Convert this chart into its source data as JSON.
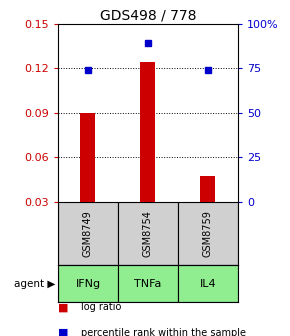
{
  "title": "GDS498 / 778",
  "samples": [
    "GSM8749",
    "GSM8754",
    "GSM8759"
  ],
  "agents": [
    "IFNg",
    "TNFa",
    "IL4"
  ],
  "log_ratio": [
    0.09,
    0.124,
    0.047
  ],
  "percentile_rank": [
    0.119,
    0.137,
    0.119
  ],
  "ylim_left": [
    0.03,
    0.15
  ],
  "yticks_left": [
    0.03,
    0.06,
    0.09,
    0.12,
    0.15
  ],
  "ylim_right": [
    0,
    100
  ],
  "yticks_right": [
    0,
    25,
    50,
    75,
    100
  ],
  "ytick_labels_right": [
    "0",
    "25",
    "50",
    "75",
    "100%"
  ],
  "bar_color": "#cc0000",
  "point_color": "#0000cc",
  "left_tick_color": "#cc0000",
  "right_tick_color": "#0000cc",
  "gray_box_color": "#d0d0d0",
  "green_box_color": "#90ee90",
  "bar_width": 0.25,
  "x_positions": [
    0,
    1,
    2
  ],
  "xlim": [
    -0.5,
    2.5
  ]
}
